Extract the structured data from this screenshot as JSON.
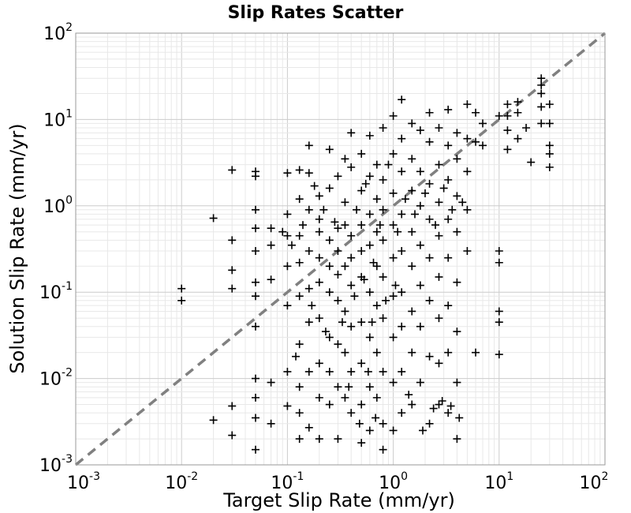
{
  "chart_data": {
    "type": "scatter",
    "title": "Slip Rates Scatter",
    "xlabel": "Target Slip Rate (mm/yr)",
    "ylabel": "Solution Slip Rate (mm/yr)",
    "xscale": "log",
    "yscale": "log",
    "xlim": [
      0.001,
      100
    ],
    "ylim": [
      0.001,
      100
    ],
    "grid": true,
    "marker": "plus",
    "colors": {
      "marker": "#000000",
      "reference_line": "#808080",
      "grid_major": "#cccccc",
      "grid_minor": "#e8e8e8",
      "frame": "#999999"
    },
    "x_ticks": [
      {
        "value": 0.001,
        "base": "10",
        "exp": "-3"
      },
      {
        "value": 0.01,
        "base": "10",
        "exp": "-2"
      },
      {
        "value": 0.1,
        "base": "10",
        "exp": "-1"
      },
      {
        "value": 1,
        "base": "10",
        "exp": "0"
      },
      {
        "value": 10,
        "base": "10",
        "exp": "1"
      },
      {
        "value": 100,
        "base": "10",
        "exp": "2"
      }
    ],
    "y_ticks": [
      {
        "value": 0.001,
        "base": "10",
        "exp": "-3"
      },
      {
        "value": 0.01,
        "base": "10",
        "exp": "-2"
      },
      {
        "value": 0.1,
        "base": "10",
        "exp": "-1"
      },
      {
        "value": 1,
        "base": "10",
        "exp": "0"
      },
      {
        "value": 10,
        "base": "10",
        "exp": "1"
      },
      {
        "value": 100,
        "base": "10",
        "exp": "2"
      }
    ],
    "reference_line": {
      "style": "dashed",
      "x": [
        0.001,
        100
      ],
      "y": [
        0.001,
        100
      ]
    },
    "series": [
      {
        "points": [
          [
            0.01,
            0.11
          ],
          [
            0.01,
            0.08
          ],
          [
            0.02,
            0.72
          ],
          [
            0.02,
            0.0033
          ],
          [
            0.03,
            2.6
          ],
          [
            0.03,
            0.4
          ],
          [
            0.03,
            0.18
          ],
          [
            0.03,
            0.11
          ],
          [
            0.03,
            0.0048
          ],
          [
            0.03,
            0.0022
          ],
          [
            0.05,
            2.5
          ],
          [
            0.05,
            2.2
          ],
          [
            0.05,
            0.9
          ],
          [
            0.05,
            0.55
          ],
          [
            0.05,
            0.3
          ],
          [
            0.05,
            0.13
          ],
          [
            0.05,
            0.09
          ],
          [
            0.05,
            0.04
          ],
          [
            0.05,
            0.01
          ],
          [
            0.05,
            0.006
          ],
          [
            0.05,
            0.0035
          ],
          [
            0.05,
            0.0015
          ],
          [
            0.07,
            0.55
          ],
          [
            0.07,
            0.35
          ],
          [
            0.07,
            0.14
          ],
          [
            0.07,
            0.009
          ],
          [
            0.07,
            0.003
          ],
          [
            0.1,
            2.4
          ],
          [
            0.1,
            0.8
          ],
          [
            0.1,
            0.45
          ],
          [
            0.1,
            0.2
          ],
          [
            0.1,
            0.07
          ],
          [
            0.1,
            0.012
          ],
          [
            0.1,
            0.0048
          ],
          [
            0.13,
            2.6
          ],
          [
            0.13,
            1.2
          ],
          [
            0.13,
            0.45
          ],
          [
            0.13,
            0.22
          ],
          [
            0.13,
            0.09
          ],
          [
            0.13,
            0.025
          ],
          [
            0.13,
            0.008
          ],
          [
            0.13,
            0.004
          ],
          [
            0.13,
            0.002
          ],
          [
            0.16,
            5.0
          ],
          [
            0.16,
            2.4
          ],
          [
            0.16,
            0.9
          ],
          [
            0.16,
            0.3
          ],
          [
            0.16,
            0.11
          ],
          [
            0.16,
            0.045
          ],
          [
            0.16,
            0.012
          ],
          [
            0.16,
            0.0027
          ],
          [
            0.2,
            1.3
          ],
          [
            0.2,
            0.7
          ],
          [
            0.2,
            0.5
          ],
          [
            0.2,
            0.25
          ],
          [
            0.2,
            0.13
          ],
          [
            0.2,
            0.05
          ],
          [
            0.2,
            0.015
          ],
          [
            0.2,
            0.006
          ],
          [
            0.2,
            0.002
          ],
          [
            0.25,
            4.5
          ],
          [
            0.25,
            1.6
          ],
          [
            0.25,
            0.4
          ],
          [
            0.25,
            0.2
          ],
          [
            0.25,
            0.1
          ],
          [
            0.25,
            0.03
          ],
          [
            0.25,
            0.012
          ],
          [
            0.25,
            0.005
          ],
          [
            0.3,
            2.2
          ],
          [
            0.3,
            0.55
          ],
          [
            0.3,
            0.3
          ],
          [
            0.3,
            0.16
          ],
          [
            0.3,
            0.08
          ],
          [
            0.3,
            0.025
          ],
          [
            0.3,
            0.008
          ],
          [
            0.3,
            0.002
          ],
          [
            0.35,
            3.5
          ],
          [
            0.35,
            1.1
          ],
          [
            0.35,
            0.6
          ],
          [
            0.35,
            0.2
          ],
          [
            0.35,
            0.06
          ],
          [
            0.35,
            0.02
          ],
          [
            0.35,
            0.006
          ],
          [
            0.4,
            7.0
          ],
          [
            0.4,
            2.8
          ],
          [
            0.4,
            0.45
          ],
          [
            0.4,
            0.25
          ],
          [
            0.4,
            0.12
          ],
          [
            0.4,
            0.04
          ],
          [
            0.4,
            0.012
          ],
          [
            0.4,
            0.004
          ],
          [
            0.5,
            4.0
          ],
          [
            0.5,
            1.5
          ],
          [
            0.5,
            0.6
          ],
          [
            0.5,
            0.3
          ],
          [
            0.5,
            0.15
          ],
          [
            0.5,
            0.045
          ],
          [
            0.5,
            0.015
          ],
          [
            0.5,
            0.005
          ],
          [
            0.5,
            0.0018
          ],
          [
            0.6,
            6.5
          ],
          [
            0.6,
            2.2
          ],
          [
            0.6,
            0.8
          ],
          [
            0.6,
            0.35
          ],
          [
            0.6,
            0.1
          ],
          [
            0.6,
            0.03
          ],
          [
            0.6,
            0.008
          ],
          [
            0.6,
            0.0025
          ],
          [
            0.7,
            3.0
          ],
          [
            0.7,
            1.2
          ],
          [
            0.7,
            0.5
          ],
          [
            0.7,
            0.2
          ],
          [
            0.7,
            0.07
          ],
          [
            0.7,
            0.02
          ],
          [
            0.7,
            0.006
          ],
          [
            0.8,
            8.0
          ],
          [
            0.8,
            2.0
          ],
          [
            0.8,
            0.9
          ],
          [
            0.8,
            0.4
          ],
          [
            0.8,
            0.15
          ],
          [
            0.8,
            0.05
          ],
          [
            0.8,
            0.012
          ],
          [
            0.8,
            0.003
          ],
          [
            0.8,
            0.0015
          ],
          [
            1.0,
            11.0
          ],
          [
            1.0,
            4.0
          ],
          [
            1.0,
            1.4
          ],
          [
            1.0,
            0.6
          ],
          [
            1.0,
            0.25
          ],
          [
            1.0,
            0.09
          ],
          [
            1.0,
            0.03
          ],
          [
            1.0,
            0.009
          ],
          [
            1.0,
            0.0025
          ],
          [
            1.2,
            17.0
          ],
          [
            1.2,
            6.0
          ],
          [
            1.2,
            2.5
          ],
          [
            1.2,
            0.8
          ],
          [
            1.2,
            0.3
          ],
          [
            1.2,
            0.1
          ],
          [
            1.2,
            0.04
          ],
          [
            1.2,
            0.012
          ],
          [
            1.2,
            0.004
          ],
          [
            1.5,
            9.0
          ],
          [
            1.5,
            3.5
          ],
          [
            1.5,
            1.5
          ],
          [
            1.5,
            0.5
          ],
          [
            1.5,
            0.2
          ],
          [
            1.5,
            0.06
          ],
          [
            1.5,
            0.02
          ],
          [
            1.5,
            0.005
          ],
          [
            1.8,
            7.5
          ],
          [
            1.8,
            2.5
          ],
          [
            1.8,
            1.0
          ],
          [
            1.8,
            0.35
          ],
          [
            1.8,
            0.12
          ],
          [
            1.8,
            0.04
          ],
          [
            1.8,
            0.009
          ],
          [
            2.2,
            12.0
          ],
          [
            2.2,
            5.5
          ],
          [
            2.2,
            1.8
          ],
          [
            2.2,
            0.7
          ],
          [
            2.2,
            0.25
          ],
          [
            2.2,
            0.08
          ],
          [
            2.2,
            0.018
          ],
          [
            2.2,
            0.003
          ],
          [
            2.7,
            8.0
          ],
          [
            2.7,
            3.0
          ],
          [
            2.7,
            1.1
          ],
          [
            2.7,
            0.45
          ],
          [
            2.7,
            0.15
          ],
          [
            2.7,
            0.05
          ],
          [
            2.7,
            0.015
          ],
          [
            2.7,
            0.005
          ],
          [
            3.3,
            13.0
          ],
          [
            3.3,
            5.0
          ],
          [
            3.3,
            2.0
          ],
          [
            3.3,
            0.7
          ],
          [
            3.3,
            0.25
          ],
          [
            3.3,
            0.07
          ],
          [
            3.3,
            0.02
          ],
          [
            3.3,
            0.004
          ],
          [
            4.0,
            7.0
          ],
          [
            4.0,
            3.5
          ],
          [
            4.0,
            1.3
          ],
          [
            4.0,
            0.5
          ],
          [
            4.0,
            0.13
          ],
          [
            4.0,
            0.035
          ],
          [
            4.0,
            0.009
          ],
          [
            4.0,
            0.002
          ],
          [
            5.0,
            15.0
          ],
          [
            5.0,
            6.0
          ],
          [
            5.0,
            2.5
          ],
          [
            5.0,
            0.9
          ],
          [
            5.0,
            0.3
          ],
          [
            6.0,
            12.0
          ],
          [
            6.0,
            5.5
          ],
          [
            6.0,
            0.02
          ],
          [
            7.0,
            9.0
          ],
          [
            7.0,
            5.0
          ],
          [
            10.0,
            11.0
          ],
          [
            10.0,
            0.3
          ],
          [
            10.0,
            0.22
          ],
          [
            10.0,
            0.06
          ],
          [
            10.0,
            0.045
          ],
          [
            10.0,
            0.019
          ],
          [
            12.0,
            15.0
          ],
          [
            12.0,
            11.0
          ],
          [
            12.0,
            7.5
          ],
          [
            12.0,
            4.5
          ],
          [
            15.0,
            16.0
          ],
          [
            15.0,
            12.0
          ],
          [
            15.0,
            6.0
          ],
          [
            18.0,
            8.0
          ],
          [
            20.0,
            3.2
          ],
          [
            25.0,
            30.0
          ],
          [
            25.0,
            25.0
          ],
          [
            25.0,
            20.0
          ],
          [
            25.0,
            14.0
          ],
          [
            25.0,
            9.0
          ],
          [
            30.0,
            15.0
          ],
          [
            30.0,
            9.0
          ],
          [
            30.0,
            5.0
          ],
          [
            30.0,
            4.0
          ],
          [
            30.0,
            2.8
          ],
          [
            0.09,
            0.5
          ],
          [
            0.11,
            0.35
          ],
          [
            0.14,
            0.6
          ],
          [
            0.18,
            1.7
          ],
          [
            0.22,
            0.9
          ],
          [
            0.28,
            0.65
          ],
          [
            0.45,
            0.9
          ],
          [
            0.55,
            1.8
          ],
          [
            0.65,
            0.22
          ],
          [
            0.75,
            0.6
          ],
          [
            0.9,
            3.0
          ],
          [
            1.1,
            0.5
          ],
          [
            1.3,
            1.2
          ],
          [
            1.6,
            0.8
          ],
          [
            2.0,
            1.4
          ],
          [
            2.5,
            0.6
          ],
          [
            3.0,
            1.6
          ],
          [
            3.6,
            0.9
          ],
          [
            4.5,
            1.1
          ],
          [
            0.38,
            0.008
          ],
          [
            0.48,
            0.003
          ],
          [
            0.58,
            0.012
          ],
          [
            0.68,
            0.0035
          ],
          [
            1.4,
            0.0065
          ],
          [
            1.9,
            0.0025
          ],
          [
            2.4,
            0.0045
          ],
          [
            2.9,
            0.0055
          ],
          [
            3.5,
            0.0048
          ],
          [
            4.2,
            0.0035
          ],
          [
            0.12,
            0.018
          ],
          [
            0.17,
            0.07
          ],
          [
            0.23,
            0.035
          ],
          [
            0.33,
            0.045
          ],
          [
            0.43,
            0.09
          ],
          [
            0.53,
            0.14
          ],
          [
            0.63,
            0.045
          ],
          [
            0.85,
            0.08
          ],
          [
            1.05,
            0.12
          ]
        ]
      }
    ]
  }
}
